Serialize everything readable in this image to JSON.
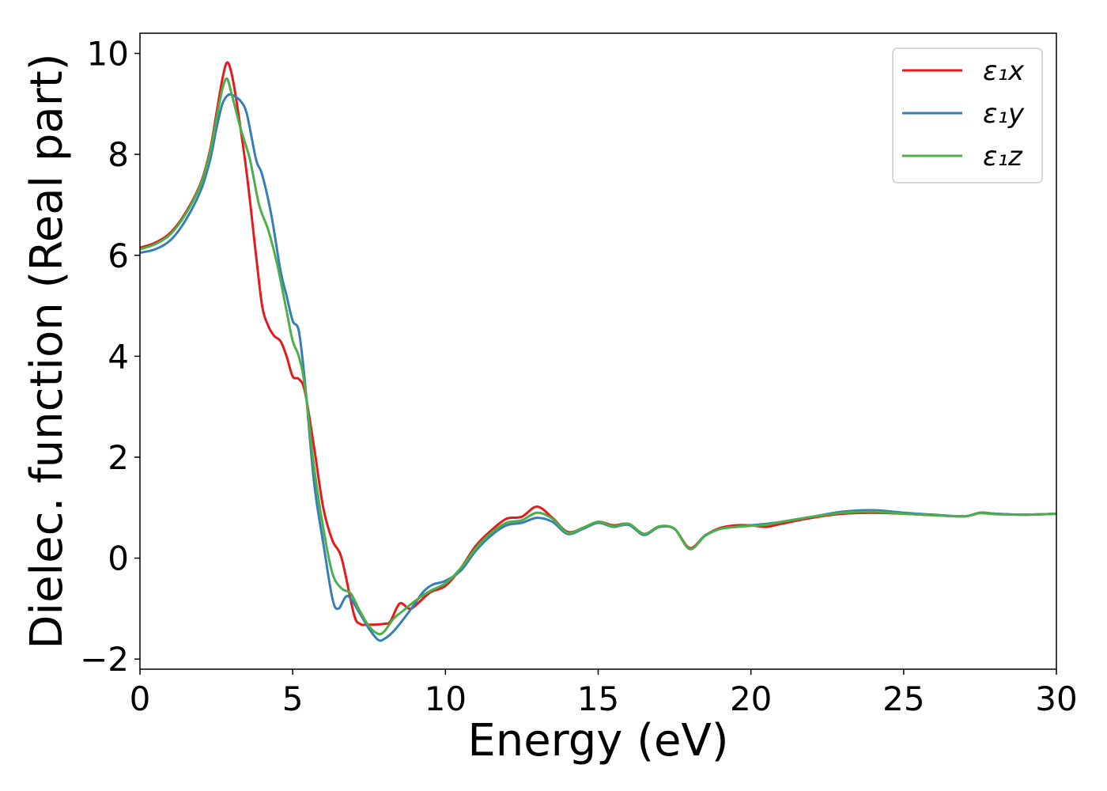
{
  "chart_data": {
    "type": "line",
    "title": "",
    "xlabel": "Energy (eV)",
    "ylabel": "Dielec. function (Real part)",
    "xlim": [
      0,
      30
    ],
    "ylim": [
      -2.2,
      10.4
    ],
    "xticks": [
      0,
      5,
      10,
      15,
      20,
      25,
      30
    ],
    "xtick_labels": [
      "0",
      "5",
      "10",
      "15",
      "20",
      "25",
      "30"
    ],
    "yticks": [
      -2,
      0,
      2,
      4,
      6,
      8,
      10
    ],
    "ytick_labels": [
      "−2",
      "0",
      "2",
      "4",
      "6",
      "8",
      "10"
    ],
    "grid": false,
    "legend_position": "top-right",
    "series": [
      {
        "name": "ε₁x",
        "color": "#e41a1c",
        "x": [
          0,
          0.5,
          1,
          1.5,
          2,
          2.3,
          2.5,
          2.7,
          2.85,
          3,
          3.2,
          3.5,
          3.8,
          4,
          4.2,
          4.4,
          4.6,
          4.8,
          5,
          5.2,
          5.4,
          5.7,
          6,
          6.3,
          6.6,
          7,
          7.2,
          7.5,
          8,
          8.2,
          8.5,
          8.8,
          9,
          9.5,
          10,
          10.5,
          11,
          11.5,
          12,
          12.5,
          13,
          13.5,
          14,
          14.5,
          15,
          15.5,
          16,
          16.5,
          17,
          17.5,
          18,
          18.5,
          19,
          19.5,
          20,
          20.5,
          21,
          22,
          23,
          24,
          25,
          26,
          27,
          27.5,
          28,
          29,
          30
        ],
        "y": [
          6.15,
          6.25,
          6.45,
          6.85,
          7.45,
          8.1,
          8.8,
          9.5,
          9.82,
          9.6,
          8.9,
          7.6,
          6.0,
          5.0,
          4.6,
          4.4,
          4.3,
          4.0,
          3.6,
          3.55,
          3.3,
          2.2,
          1.0,
          0.35,
          0.0,
          -1.1,
          -1.3,
          -1.32,
          -1.3,
          -1.25,
          -0.9,
          -1.0,
          -0.95,
          -0.68,
          -0.55,
          -0.2,
          0.25,
          0.55,
          0.78,
          0.82,
          1.02,
          0.8,
          0.52,
          0.6,
          0.72,
          0.65,
          0.68,
          0.48,
          0.62,
          0.58,
          0.2,
          0.45,
          0.6,
          0.65,
          0.65,
          0.62,
          0.68,
          0.8,
          0.88,
          0.9,
          0.88,
          0.85,
          0.83,
          0.9,
          0.88,
          0.86,
          0.88
        ]
      },
      {
        "name": "ε₁y",
        "color": "#377eb8",
        "x": [
          0,
          0.5,
          1,
          1.5,
          2,
          2.3,
          2.5,
          2.7,
          2.9,
          3.1,
          3.3,
          3.5,
          3.8,
          4,
          4.3,
          4.6,
          4.8,
          5,
          5.2,
          5.4,
          5.7,
          6,
          6.3,
          6.5,
          6.8,
          7.2,
          7.5,
          7.8,
          8,
          8.3,
          8.7,
          9,
          9.3,
          9.6,
          10,
          10.5,
          11,
          11.5,
          12,
          12.5,
          13,
          13.5,
          14,
          14.5,
          15,
          15.5,
          16,
          16.5,
          17,
          17.5,
          18,
          18.5,
          19,
          19.5,
          20,
          20.5,
          21,
          22,
          23,
          24,
          25,
          26,
          27,
          27.5,
          28,
          29,
          30
        ],
        "y": [
          6.05,
          6.12,
          6.3,
          6.7,
          7.3,
          7.9,
          8.5,
          9.0,
          9.18,
          9.15,
          9.05,
          8.8,
          7.9,
          7.6,
          6.8,
          5.7,
          5.2,
          4.7,
          4.5,
          3.5,
          1.5,
          0.3,
          -0.8,
          -1.0,
          -0.75,
          -1.1,
          -1.4,
          -1.62,
          -1.6,
          -1.45,
          -1.15,
          -0.9,
          -0.65,
          -0.52,
          -0.45,
          -0.25,
          0.15,
          0.45,
          0.65,
          0.7,
          0.8,
          0.72,
          0.48,
          0.58,
          0.7,
          0.62,
          0.66,
          0.46,
          0.62,
          0.58,
          0.18,
          0.45,
          0.58,
          0.62,
          0.65,
          0.68,
          0.72,
          0.82,
          0.92,
          0.95,
          0.9,
          0.86,
          0.83,
          0.9,
          0.88,
          0.86,
          0.88
        ]
      },
      {
        "name": "ε₁z",
        "color": "#4daf4a",
        "x": [
          0,
          0.5,
          1,
          1.5,
          2,
          2.3,
          2.5,
          2.7,
          2.85,
          3,
          3.3,
          3.6,
          3.9,
          4.2,
          4.5,
          4.8,
          5,
          5.2,
          5.4,
          5.7,
          6,
          6.3,
          6.6,
          6.9,
          7.2,
          7.5,
          7.8,
          8,
          8.3,
          8.6,
          9,
          9.5,
          10,
          10.5,
          11,
          11.5,
          12,
          12.5,
          13,
          13.5,
          14,
          14.5,
          15,
          15.5,
          16,
          16.5,
          17,
          17.5,
          18,
          18.5,
          19,
          19.5,
          20,
          20.5,
          21,
          22,
          23,
          24,
          25,
          26,
          27,
          27.5,
          28,
          29,
          30
        ],
        "y": [
          6.12,
          6.22,
          6.42,
          6.82,
          7.42,
          8.05,
          8.7,
          9.3,
          9.5,
          9.2,
          8.5,
          7.9,
          7.0,
          6.5,
          5.8,
          4.9,
          4.3,
          4.0,
          3.4,
          1.8,
          0.6,
          -0.3,
          -0.6,
          -0.7,
          -1.05,
          -1.35,
          -1.5,
          -1.45,
          -1.2,
          -1.05,
          -0.85,
          -0.65,
          -0.5,
          -0.2,
          0.2,
          0.5,
          0.7,
          0.75,
          0.9,
          0.78,
          0.5,
          0.6,
          0.72,
          0.63,
          0.68,
          0.48,
          0.63,
          0.58,
          0.18,
          0.44,
          0.58,
          0.62,
          0.64,
          0.66,
          0.72,
          0.82,
          0.9,
          0.92,
          0.88,
          0.85,
          0.83,
          0.89,
          0.87,
          0.86,
          0.88
        ]
      }
    ]
  }
}
